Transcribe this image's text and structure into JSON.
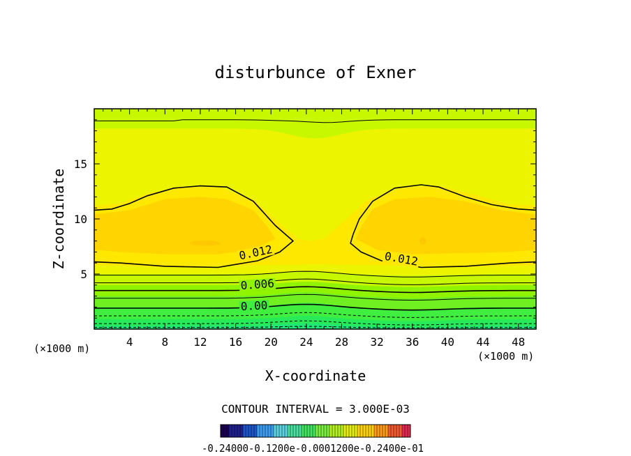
{
  "chart_data": {
    "type": "heatmap",
    "title": "disturbunce of Exner",
    "xlabel": "X-coordinate",
    "ylabel": "Z-coordinate",
    "x_unit": "(×1000 m)",
    "z_unit": "(×1000 m)",
    "xlim": [
      0,
      50
    ],
    "ylim": [
      0,
      20
    ],
    "x_ticks": [
      4,
      8,
      12,
      16,
      20,
      24,
      28,
      32,
      36,
      40,
      44,
      48
    ],
    "y_ticks": [
      5,
      10,
      15
    ],
    "contour_interval_text": "CONTOUR INTERVAL = 3.000E-03",
    "contour_labels": [
      {
        "text": "0.012",
        "x": 16.5,
        "z": 6.3,
        "rotate": -12
      },
      {
        "text": "0.012",
        "x": 32.8,
        "z": 6.3,
        "rotate": 10
      },
      {
        "text": "0.006",
        "x": 16.6,
        "z": 3.6,
        "rotate": -4
      },
      {
        "text": "0.00",
        "x": 16.6,
        "z": 1.7,
        "rotate": -3
      }
    ],
    "colorbar": {
      "labels_text": "-0.24000-0.1200e-0.0001200e-0.2400e-01",
      "colors": [
        "#1a0050",
        "#20208a",
        "#1e55c8",
        "#3c9cf0",
        "#5cd2e0",
        "#48e0a0",
        "#40e460",
        "#78ee40",
        "#b4f020",
        "#e6f000",
        "#ffd400",
        "#ff9a18",
        "#f05a30",
        "#e02850"
      ]
    },
    "field_colors": {
      "bottom": "#1ee878",
      "green": "#40ee40",
      "lightgreen": "#90f400",
      "yellowgreen": "#c8f800",
      "yellow": "#ecf400",
      "lightorange": "#ffe800",
      "orange": "#ffd400"
    }
  }
}
